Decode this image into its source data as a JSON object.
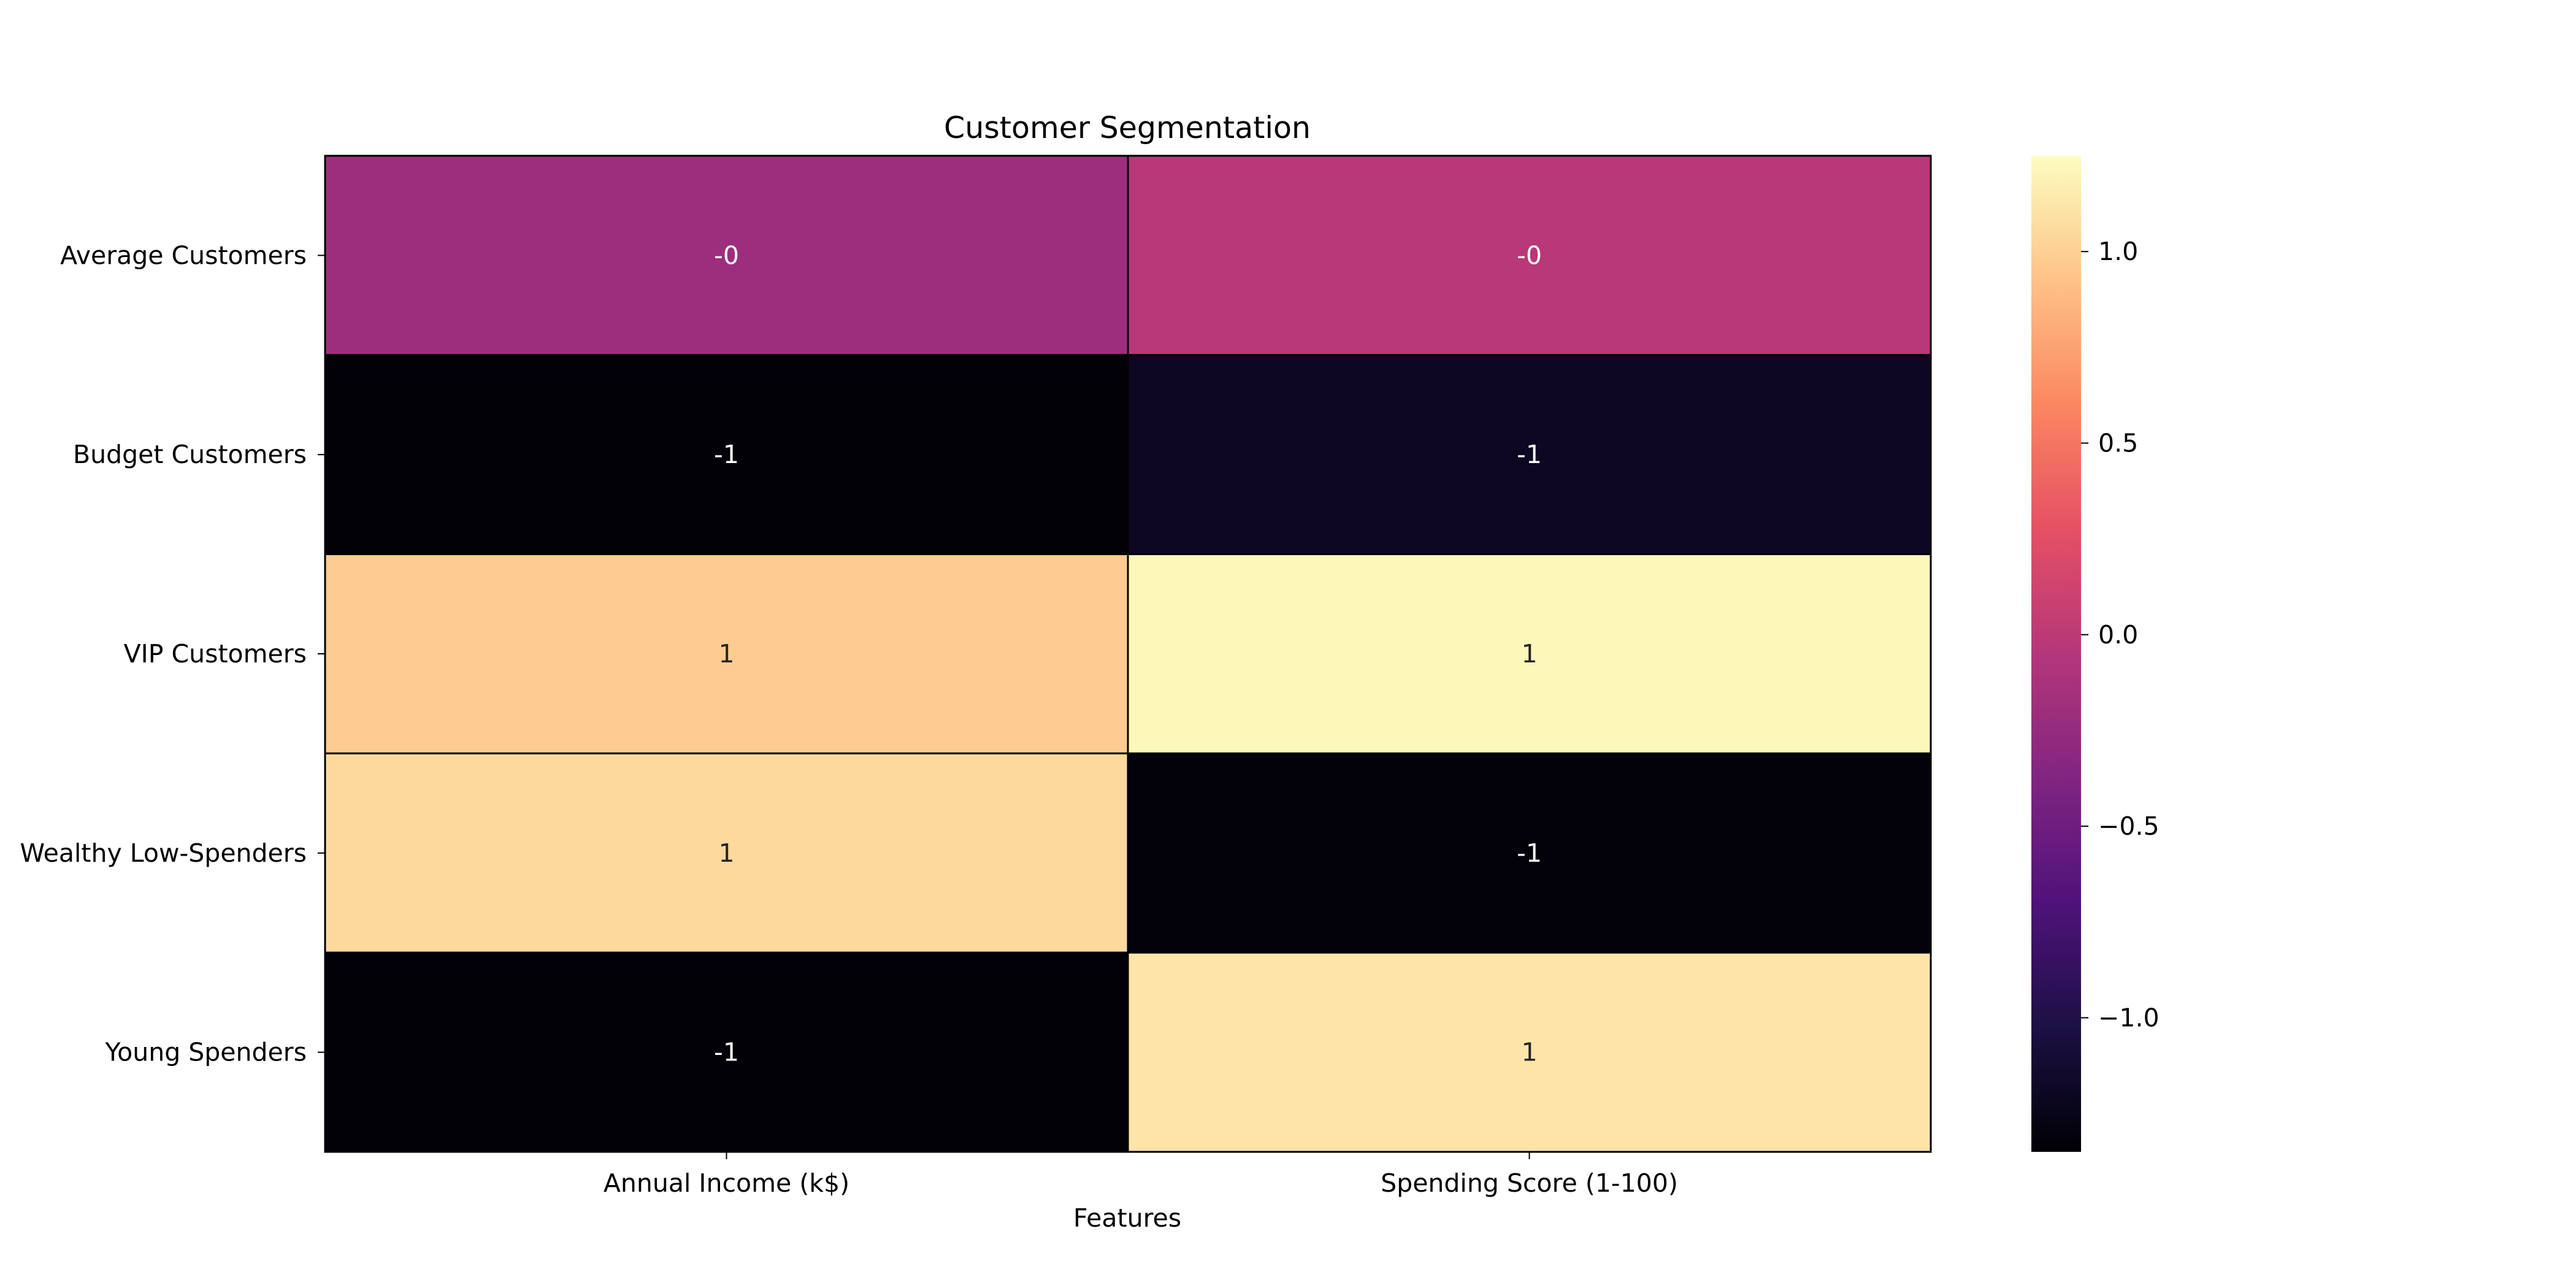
{
  "chart_data": {
    "type": "heatmap",
    "title": "Customer Segmentation",
    "xlabel": "Features",
    "ylabel": "",
    "x_categories": [
      "Annual Income (k$)",
      "Spending Score (1-100)"
    ],
    "y_categories": [
      "Average Customers",
      "Budget Customers",
      "VIP Customers",
      "Wealthy Low-Spenders",
      "Young Spenders"
    ],
    "values": [
      [
        -0.2,
        -0.03
      ],
      [
        -1.33,
        -1.2
      ],
      [
        0.98,
        1.22
      ],
      [
        1.05,
        -1.32
      ],
      [
        -1.33,
        1.12
      ]
    ],
    "annotations": [
      [
        "-0",
        "-0"
      ],
      [
        "-1",
        "-1"
      ],
      [
        "1",
        "1"
      ],
      [
        "1",
        "-1"
      ],
      [
        "-1",
        "1"
      ]
    ],
    "colormap": "magma",
    "colorbar": {
      "range": [
        -1.35,
        1.25
      ],
      "ticks": [
        -1.0,
        -0.5,
        0.0,
        0.5,
        1.0
      ],
      "tick_labels": [
        "−1.0",
        "−0.5",
        "0.0",
        "0.5",
        "1.0"
      ]
    }
  }
}
